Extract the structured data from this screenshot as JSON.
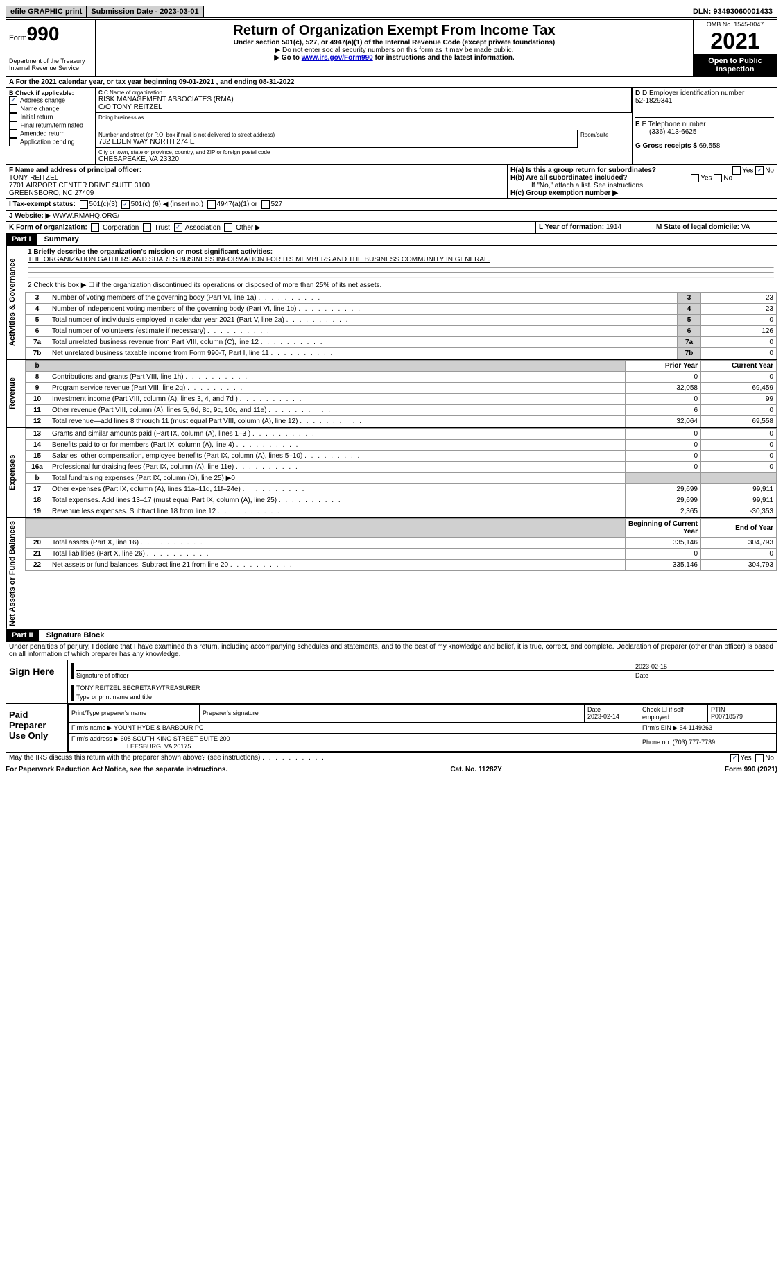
{
  "topbar": {
    "efile": "efile GRAPHIC print",
    "submission_label": "Submission Date - 2023-03-01",
    "dln_label": "DLN: 93493060001433"
  },
  "header": {
    "form_label": "Form",
    "form_no": "990",
    "title": "Return of Organization Exempt From Income Tax",
    "subtitle": "Under section 501(c), 527, or 4947(a)(1) of the Internal Revenue Code (except private foundations)",
    "note1": "▶ Do not enter social security numbers on this form as it may be made public.",
    "note2_pre": "▶ Go to ",
    "note2_link": "www.irs.gov/Form990",
    "note2_post": " for instructions and the latest information.",
    "dept": "Department of the Treasury\nInternal Revenue Service",
    "omb": "OMB No. 1545-0047",
    "year": "2021",
    "open": "Open to Public Inspection"
  },
  "a": {
    "line": "A For the 2021 calendar year, or tax year beginning 09-01-2021   , and ending 08-31-2022"
  },
  "b": {
    "label": "B Check if applicable:",
    "items": [
      "Address change",
      "Name change",
      "Initial return",
      "Final return/terminated",
      "Amended return",
      "Application pending"
    ],
    "checked_idx": 0
  },
  "c": {
    "label": "C Name of organization",
    "name": "RISK MANAGEMENT ASSOCIATES (RMA)",
    "co": "C/O TONY REITZEL",
    "dba_label": "Doing business as",
    "addr_label": "Number and street (or P.O. box if mail is not delivered to street address)",
    "room_label": "Room/suite",
    "addr": "732 EDEN WAY NORTH 274 E",
    "city_label": "City or town, state or province, country, and ZIP or foreign postal code",
    "city": "CHESAPEAKE, VA  23320"
  },
  "d": {
    "label": "D Employer identification number",
    "value": "52-1829341"
  },
  "e": {
    "label": "E Telephone number",
    "value": "(336) 413-6625"
  },
  "g": {
    "label": "G Gross receipts $",
    "value": "69,558"
  },
  "f": {
    "label": "F  Name and address of principal officer:",
    "name": "TONY REITZEL",
    "addr1": "7701 AIRPORT CENTER DRIVE SUITE 3100",
    "addr2": "GREENSBORO, NC  27409"
  },
  "h": {
    "a": "H(a)  Is this a group return for subordinates?",
    "a_no": "No",
    "b": "H(b)  Are all subordinates included?",
    "b_note": "If \"No,\" attach a list. See instructions.",
    "c": "H(c)  Group exemption number ▶"
  },
  "i": {
    "label": "I   Tax-exempt status:",
    "opt1": "501(c)(3)",
    "opt2_pre": "501(c) (",
    "opt2_val": "6",
    "opt2_post": ") ◀ (insert no.)",
    "opt3": "4947(a)(1) or",
    "opt4": "527"
  },
  "j": {
    "label": "J   Website: ▶",
    "value": "WWW.RMAHQ.ORG/"
  },
  "k": {
    "label": "K Form of organization:",
    "opts": [
      "Corporation",
      "Trust",
      "Association",
      "Other ▶"
    ],
    "checked_idx": 2
  },
  "l": {
    "label": "L Year of formation:",
    "value": "1914"
  },
  "m": {
    "label": "M State of legal domicile:",
    "value": "VA"
  },
  "part1": {
    "header": "Part I",
    "title": "Summary",
    "line1_label": "1   Briefly describe the organization's mission or most significant activities:",
    "line1_text": "THE ORGANIZATION GATHERS AND SHARES BUSINESS INFORMATION FOR ITS MEMBERS AND THE BUSINESS COMMUNITY IN GENERAL.",
    "line2": "2   Check this box ▶ ☐  if the organization discontinued its operations or disposed of more than 25% of its net assets.",
    "gov_label": "Activities & Governance",
    "rev_label": "Revenue",
    "exp_label": "Expenses",
    "net_label": "Net Assets or Fund Balances",
    "gov_lines": [
      {
        "n": "3",
        "t": "Number of voting members of the governing body (Part VI, line 1a)",
        "v": "23"
      },
      {
        "n": "4",
        "t": "Number of independent voting members of the governing body (Part VI, line 1b)",
        "v": "23"
      },
      {
        "n": "5",
        "t": "Total number of individuals employed in calendar year 2021 (Part V, line 2a)",
        "v": "0"
      },
      {
        "n": "6",
        "t": "Total number of volunteers (estimate if necessary)",
        "v": "126"
      },
      {
        "n": "7a",
        "t": "Total unrelated business revenue from Part VIII, column (C), line 12",
        "v": "0"
      },
      {
        "n": "7b",
        "t": "Net unrelated business taxable income from Form 990-T, Part I, line 11",
        "v": "0"
      }
    ],
    "col_prior": "Prior Year",
    "col_current": "Current Year",
    "col_boy": "Beginning of Current Year",
    "col_eoy": "End of Year",
    "rev_lines": [
      {
        "n": "8",
        "t": "Contributions and grants (Part VIII, line 1h)",
        "p": "0",
        "c": "0"
      },
      {
        "n": "9",
        "t": "Program service revenue (Part VIII, line 2g)",
        "p": "32,058",
        "c": "69,459"
      },
      {
        "n": "10",
        "t": "Investment income (Part VIII, column (A), lines 3, 4, and 7d )",
        "p": "0",
        "c": "99"
      },
      {
        "n": "11",
        "t": "Other revenue (Part VIII, column (A), lines 5, 6d, 8c, 9c, 10c, and 11e)",
        "p": "6",
        "c": "0"
      },
      {
        "n": "12",
        "t": "Total revenue—add lines 8 through 11 (must equal Part VIII, column (A), line 12)",
        "p": "32,064",
        "c": "69,558"
      }
    ],
    "exp_lines": [
      {
        "n": "13",
        "t": "Grants and similar amounts paid (Part IX, column (A), lines 1–3 )",
        "p": "0",
        "c": "0"
      },
      {
        "n": "14",
        "t": "Benefits paid to or for members (Part IX, column (A), line 4)",
        "p": "0",
        "c": "0"
      },
      {
        "n": "15",
        "t": "Salaries, other compensation, employee benefits (Part IX, column (A), lines 5–10)",
        "p": "0",
        "c": "0"
      },
      {
        "n": "16a",
        "t": "Professional fundraising fees (Part IX, column (A), line 11e)",
        "p": "0",
        "c": "0"
      },
      {
        "n": "b",
        "t": "Total fundraising expenses (Part IX, column (D), line 25) ▶0",
        "p": "",
        "c": "",
        "shade": true
      },
      {
        "n": "17",
        "t": "Other expenses (Part IX, column (A), lines 11a–11d, 11f–24e)",
        "p": "29,699",
        "c": "99,911"
      },
      {
        "n": "18",
        "t": "Total expenses. Add lines 13–17 (must equal Part IX, column (A), line 25)",
        "p": "29,699",
        "c": "99,911"
      },
      {
        "n": "19",
        "t": "Revenue less expenses. Subtract line 18 from line 12",
        "p": "2,365",
        "c": "-30,353"
      }
    ],
    "net_lines": [
      {
        "n": "20",
        "t": "Total assets (Part X, line 16)",
        "p": "335,146",
        "c": "304,793"
      },
      {
        "n": "21",
        "t": "Total liabilities (Part X, line 26)",
        "p": "0",
        "c": "0"
      },
      {
        "n": "22",
        "t": "Net assets or fund balances. Subtract line 21 from line 20",
        "p": "335,146",
        "c": "304,793"
      }
    ]
  },
  "part2": {
    "header": "Part II",
    "title": "Signature Block",
    "declaration": "Under penalties of perjury, I declare that I have examined this return, including accompanying schedules and statements, and to the best of my knowledge and belief, it is true, correct, and complete. Declaration of preparer (other than officer) is based on all information of which preparer has any knowledge.",
    "sign_here": "Sign Here",
    "sig_officer": "Signature of officer",
    "sig_date": "2023-02-15",
    "sig_date_label": "Date",
    "sig_name": "TONY REITZEL SECRETARY/TREASURER",
    "sig_name_label": "Type or print name and title",
    "paid_label": "Paid Preparer Use Only",
    "prep_name_label": "Print/Type preparer's name",
    "prep_sig_label": "Preparer's signature",
    "prep_date_label": "Date",
    "prep_date": "2023-02-14",
    "prep_check": "Check ☐ if self-employed",
    "ptin_label": "PTIN",
    "ptin": "P00718579",
    "firm_name_label": "Firm's name    ▶",
    "firm_name": "YOUNT HYDE & BARBOUR PC",
    "firm_ein_label": "Firm's EIN ▶",
    "firm_ein": "54-1149263",
    "firm_addr_label": "Firm's address ▶",
    "firm_addr": "608 SOUTH KING STREET SUITE 200",
    "firm_city": "LEESBURG, VA  20175",
    "phone_label": "Phone no.",
    "phone": "(703) 777-7739",
    "discuss": "May the IRS discuss this return with the preparer shown above? (see instructions)",
    "discuss_yes": "Yes",
    "discuss_no": "No"
  },
  "footer": {
    "left": "For Paperwork Reduction Act Notice, see the separate instructions.",
    "mid": "Cat. No. 11282Y",
    "right": "Form 990 (2021)"
  }
}
